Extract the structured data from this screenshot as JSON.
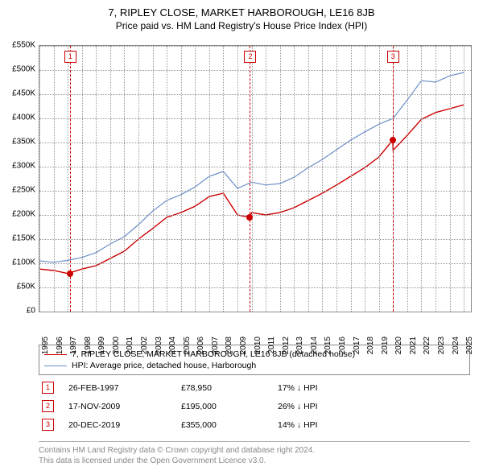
{
  "title": "7, RIPLEY CLOSE, MARKET HARBOROUGH, LE16 8JB",
  "subtitle": "Price paid vs. HM Land Registry's House Price Index (HPI)",
  "chart": {
    "type": "line",
    "background_color": "#ffffff",
    "grid_color": "#999999",
    "border_color": "#888888",
    "xlim": [
      1995,
      2025.5
    ],
    "ylim": [
      0,
      550000
    ],
    "ytick_step": 50000,
    "ytick_prefix": "£",
    "ytick_suffix": "K",
    "xticks": [
      1995,
      1996,
      1997,
      1998,
      1999,
      2000,
      2001,
      2002,
      2003,
      2004,
      2005,
      2006,
      2007,
      2008,
      2009,
      2010,
      2011,
      2012,
      2013,
      2014,
      2015,
      2016,
      2017,
      2018,
      2019,
      2020,
      2021,
      2022,
      2023,
      2024,
      2025
    ],
    "label_fontsize": 10,
    "series": [
      {
        "name": "7, RIPLEY CLOSE, MARKET HARBOROUGH, LE16 8JB (detached house)",
        "color": "#cc0000",
        "line_width": 1.4,
        "data": [
          [
            1995,
            88000
          ],
          [
            1996,
            85000
          ],
          [
            1997,
            78950
          ],
          [
            1998,
            88000
          ],
          [
            1999,
            95000
          ],
          [
            2000,
            110000
          ],
          [
            2001,
            125000
          ],
          [
            2002,
            150000
          ],
          [
            2003,
            172000
          ],
          [
            2004,
            195000
          ],
          [
            2005,
            205000
          ],
          [
            2006,
            218000
          ],
          [
            2007,
            238000
          ],
          [
            2008,
            245000
          ],
          [
            2009,
            200000
          ],
          [
            2009.88,
            195000
          ],
          [
            2010,
            205000
          ],
          [
            2011,
            200000
          ],
          [
            2012,
            205000
          ],
          [
            2013,
            215000
          ],
          [
            2014,
            230000
          ],
          [
            2015,
            245000
          ],
          [
            2016,
            262000
          ],
          [
            2017,
            280000
          ],
          [
            2018,
            298000
          ],
          [
            2019,
            320000
          ],
          [
            2019.97,
            355000
          ],
          [
            2020,
            334000
          ],
          [
            2021,
            365000
          ],
          [
            2022,
            398000
          ],
          [
            2023,
            412000
          ],
          [
            2024,
            420000
          ],
          [
            2025,
            428000
          ]
        ]
      },
      {
        "name": "HPI: Average price, detached house, Harborough",
        "color": "#6a8fc9",
        "line_width": 1.2,
        "data": [
          [
            1995,
            105000
          ],
          [
            1996,
            102000
          ],
          [
            1997,
            106000
          ],
          [
            1998,
            112000
          ],
          [
            1999,
            122000
          ],
          [
            2000,
            140000
          ],
          [
            2001,
            155000
          ],
          [
            2002,
            180000
          ],
          [
            2003,
            208000
          ],
          [
            2004,
            230000
          ],
          [
            2005,
            242000
          ],
          [
            2006,
            258000
          ],
          [
            2007,
            280000
          ],
          [
            2008,
            290000
          ],
          [
            2009,
            255000
          ],
          [
            2010,
            268000
          ],
          [
            2011,
            262000
          ],
          [
            2012,
            265000
          ],
          [
            2013,
            278000
          ],
          [
            2014,
            298000
          ],
          [
            2015,
            315000
          ],
          [
            2016,
            335000
          ],
          [
            2017,
            355000
          ],
          [
            2018,
            372000
          ],
          [
            2019,
            388000
          ],
          [
            2020,
            400000
          ],
          [
            2021,
            438000
          ],
          [
            2022,
            478000
          ],
          [
            2023,
            475000
          ],
          [
            2024,
            488000
          ],
          [
            2025,
            495000
          ]
        ]
      }
    ],
    "markers": [
      {
        "n": "1",
        "year": 1997.15,
        "price": 78950
      },
      {
        "n": "2",
        "year": 2009.88,
        "price": 195000
      },
      {
        "n": "3",
        "year": 2019.97,
        "price": 355000
      }
    ]
  },
  "legend": {
    "items": [
      {
        "color": "#cc0000",
        "label": "7, RIPLEY CLOSE, MARKET HARBOROUGH, LE16 8JB (detached house)"
      },
      {
        "color": "#6a8fc9",
        "label": "HPI: Average price, detached house, Harborough"
      }
    ]
  },
  "sales": [
    {
      "n": "1",
      "date": "26-FEB-1997",
      "price": "£78,950",
      "diff": "17% ↓ HPI"
    },
    {
      "n": "2",
      "date": "17-NOV-2009",
      "price": "£195,000",
      "diff": "26% ↓ HPI"
    },
    {
      "n": "3",
      "date": "20-DEC-2019",
      "price": "£355,000",
      "diff": "14% ↓ HPI"
    }
  ],
  "footer": {
    "line1": "Contains HM Land Registry data © Crown copyright and database right 2024.",
    "line2": "This data is licensed under the Open Government Licence v3.0."
  }
}
